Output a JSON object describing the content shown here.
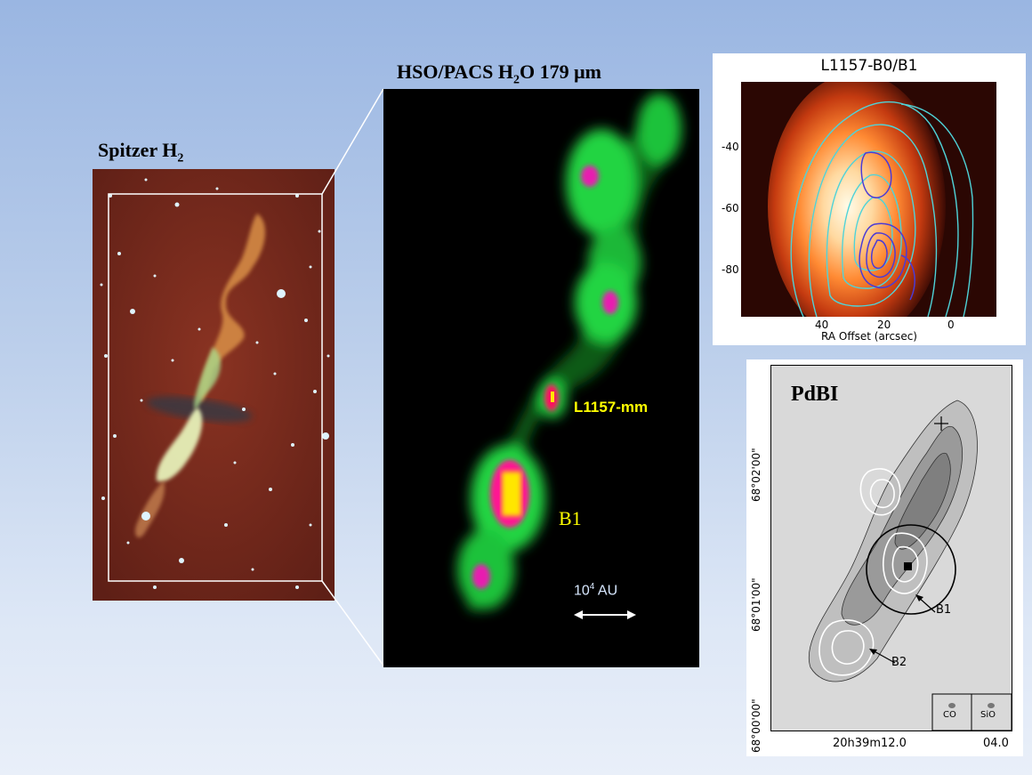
{
  "spitzer": {
    "title_main": "Spitzer  H",
    "title_sub": "2"
  },
  "pacs": {
    "title_prefix": "HSO/PACS  H",
    "title_sub": "2",
    "title_suffix": "O 179 μm",
    "label_mm": "L1157-mm",
    "label_b1": "B1",
    "scale_base": "10",
    "scale_exp": "4",
    "scale_unit": " AU"
  },
  "map1": {
    "title": "L1157-B0/B1",
    "xlabel": "RA Offset (arcsec)",
    "yticks": [
      "-40",
      "-60",
      "-80"
    ],
    "xticks": [
      "40",
      "20",
      "0"
    ]
  },
  "pdbi": {
    "title": "PdBI",
    "label_b1": "B1",
    "label_b2": "B2",
    "beam_co": "CO",
    "beam_sio": "SiO",
    "yticks": [
      "68°02'00\"",
      "68°01'00\"",
      "68°00'00\""
    ],
    "xtick_ra": "20h39m12.0",
    "xtick_ra2": "04.0"
  },
  "colors": {
    "yellow_label": "#ffff00",
    "green_emission": "#22dd44",
    "magenta_peak": "#ff1493"
  }
}
